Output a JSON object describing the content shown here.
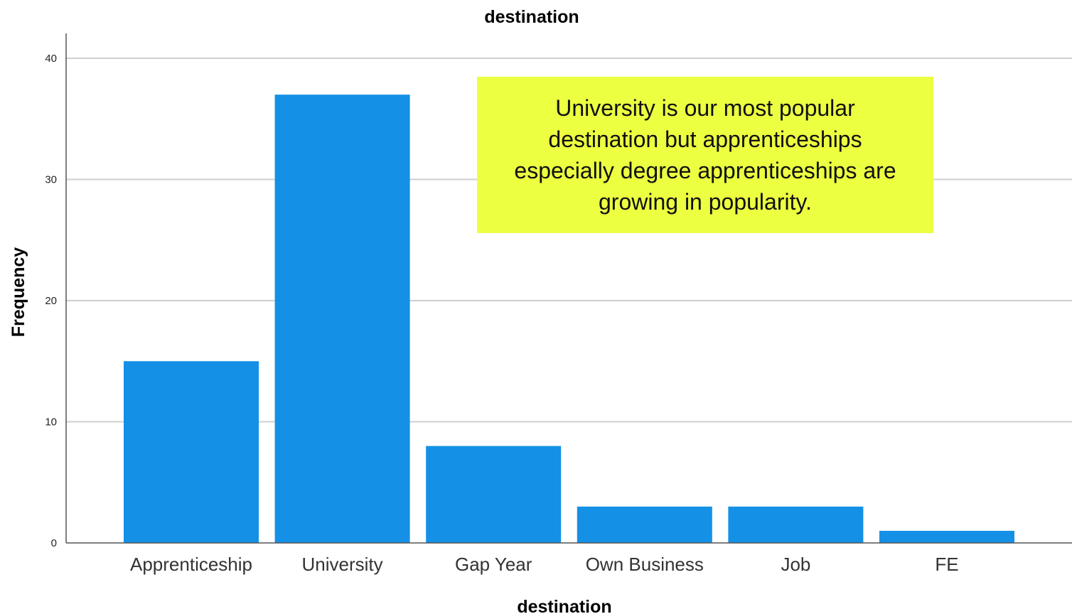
{
  "chart_data": {
    "type": "bar",
    "title": "destination",
    "xlabel": "destination",
    "ylabel": "Frequency",
    "categories": [
      "Apprenticeship",
      "University",
      "Gap Year",
      "Own Business",
      "Job",
      "FE"
    ],
    "values": [
      15,
      37,
      8,
      3,
      3,
      1
    ],
    "ylim": [
      0,
      40
    ],
    "yticks": [
      0,
      10,
      20,
      30,
      40
    ],
    "grid": true,
    "bar_color": "#1490e6"
  },
  "annotation": {
    "text": "University is our most popular destination but apprenticeships especially degree apprenticeships are growing in popularity.",
    "background": "#ecff41"
  }
}
